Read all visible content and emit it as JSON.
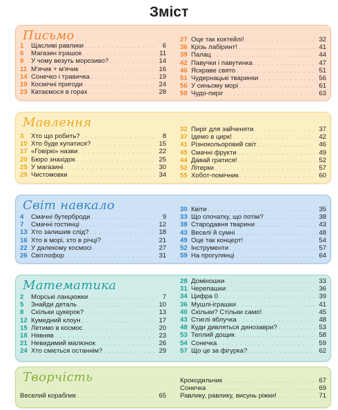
{
  "page_title": "Зміст",
  "sections": [
    {
      "id": "pysmo",
      "title": "Письмо",
      "accent": "#f07f2a",
      "bg": "#fde0cc",
      "left": [
        {
          "num": "1",
          "title": "Щасливі равлики",
          "page": "6"
        },
        {
          "num": "6",
          "title": "Магазин іграшок",
          "page": "11"
        },
        {
          "num": "9",
          "title": "У чому везуть морозиво?",
          "page": "14"
        },
        {
          "num": "11",
          "title": "М'ячик + м'ячик",
          "page": "16"
        },
        {
          "num": "14",
          "title": "Сонечко і травичка",
          "page": "19"
        },
        {
          "num": "19",
          "title": "Космічні пригоди",
          "page": "24"
        },
        {
          "num": "23",
          "title": "Катаємося в горах",
          "page": "28"
        }
      ],
      "right": [
        {
          "num": "27",
          "title": "Оце так коктейлі!",
          "page": "32"
        },
        {
          "num": "36",
          "title": "Крізь лабіринт!",
          "page": "41"
        },
        {
          "num": "39",
          "title": "Палац",
          "page": "44"
        },
        {
          "num": "42",
          "title": "Павучки і павутинка",
          "page": "47"
        },
        {
          "num": "46",
          "title": "Яскраве свято",
          "page": "51"
        },
        {
          "num": "51",
          "title": "Чудернацькі тваринки",
          "page": "56"
        },
        {
          "num": "56",
          "title": "У синьому морі",
          "page": "61"
        },
        {
          "num": "58",
          "title": "Чудо-пиріг",
          "page": "63"
        }
      ]
    },
    {
      "id": "movlennia",
      "title": "Мавлення",
      "accent": "#e8a81c",
      "bg": "#fdefc4",
      "left": [
        {
          "num": "3",
          "title": "Хто що робить?",
          "page": "8"
        },
        {
          "num": "10",
          "title": "Хто буде купатися?",
          "page": "15"
        },
        {
          "num": "17",
          "title": "«Говіркі» назви",
          "page": "22"
        },
        {
          "num": "20",
          "title": "Бюро знахідок",
          "page": "25"
        },
        {
          "num": "25",
          "title": "У магазині",
          "page": "30"
        },
        {
          "num": "29",
          "title": "Чистомовки",
          "page": "34"
        }
      ],
      "right": [
        {
          "num": "32",
          "title": "Пиріг для зайченяти",
          "page": "37"
        },
        {
          "num": "37",
          "title": "Ідемо в цирк!",
          "page": "42"
        },
        {
          "num": "41",
          "title": "Різнокольоровий світ",
          "page": "46"
        },
        {
          "num": "45",
          "title": "Смачні фрукти",
          "page": "49"
        },
        {
          "num": "44",
          "title": "Давай гратися!",
          "page": "52"
        },
        {
          "num": "52",
          "title": "Літерки",
          "page": "57"
        },
        {
          "num": "55",
          "title": "Хобот-помічник",
          "page": "60"
        }
      ]
    },
    {
      "id": "svit",
      "title": "Світ навкало",
      "accent": "#2d7fc4",
      "bg": "#cde2f4",
      "left": [
        {
          "num": "4",
          "title": "Смачні бутерброди",
          "page": "9"
        },
        {
          "num": "7",
          "title": "Смачні гостинці",
          "page": "12"
        },
        {
          "num": "13",
          "title": "Хто залишив слід?",
          "page": "18"
        },
        {
          "num": "16",
          "title": "Хто в морі, хто в річці?",
          "page": "21"
        },
        {
          "num": "22",
          "title": "У далекому космосі",
          "page": "27"
        },
        {
          "num": "26",
          "title": "Світлофор",
          "page": "31"
        }
      ],
      "right": [
        {
          "num": "30",
          "title": "Квіти",
          "page": "35"
        },
        {
          "num": "33",
          "title": "Що спочатку, що потім?",
          "page": "38"
        },
        {
          "num": "38",
          "title": "Стародавня тварини",
          "page": "43"
        },
        {
          "num": "43",
          "title": "Веселі й сумні",
          "page": "48"
        },
        {
          "num": "49",
          "title": "Оце так концерт!",
          "page": "54"
        },
        {
          "num": "52",
          "title": "Інструменти",
          "page": "57"
        },
        {
          "num": "59",
          "title": "На прогулянці",
          "page": "64"
        }
      ]
    },
    {
      "id": "matematyka",
      "title": "Математика",
      "accent": "#1f9c97",
      "bg": "#cfece9",
      "left": [
        {
          "num": "2",
          "title": "Морські ланцюжки",
          "page": "7"
        },
        {
          "num": "5",
          "title": "Знайди деталь",
          "page": "10"
        },
        {
          "num": "8",
          "title": "Скільки цукерок?",
          "page": "13"
        },
        {
          "num": "12",
          "title": "Кумедний клоун",
          "page": "17"
        },
        {
          "num": "15",
          "title": "Летимо в космос",
          "page": "20"
        },
        {
          "num": "18",
          "title": "Нявняв",
          "page": "23"
        },
        {
          "num": "21",
          "title": "Невидимий малюнок",
          "page": "26"
        },
        {
          "num": "24",
          "title": "Хто сміється останнім?",
          "page": "29"
        }
      ],
      "right": [
        {
          "num": "28",
          "title": "Доміношки",
          "page": "33"
        },
        {
          "num": "31",
          "title": "Черепашки",
          "page": "36"
        },
        {
          "num": "34",
          "title": "Цифра 0",
          "page": "39"
        },
        {
          "num": "36",
          "title": "Мушлі-іграшки",
          "page": "41"
        },
        {
          "num": "40",
          "title": "Скільки? Стільки само!",
          "page": "45"
        },
        {
          "num": "43",
          "title": "Стиглі яблучка",
          "page": "48"
        },
        {
          "num": "48",
          "title": "Куди дивляться динозаври?",
          "page": "53"
        },
        {
          "num": "53",
          "title": "Теплий дощик",
          "page": "58"
        },
        {
          "num": "54",
          "title": "Сонечка",
          "page": "59"
        },
        {
          "num": "57",
          "title": "Що це за фігурка?",
          "page": "62"
        }
      ]
    },
    {
      "id": "tvorchist",
      "title": "Творчість",
      "accent": "#7fae2e",
      "bg": "#e4efc8",
      "left": [
        {
          "num": "",
          "title": "Веселий кораблик",
          "page": "65"
        }
      ],
      "right": [
        {
          "num": "",
          "title": "Крокодильчик",
          "page": "67"
        },
        {
          "num": "",
          "title": "Сонечка",
          "page": "69"
        },
        {
          "num": "",
          "title": "Равлику, равлику, висунь ріжки!",
          "page": "71"
        }
      ]
    }
  ]
}
